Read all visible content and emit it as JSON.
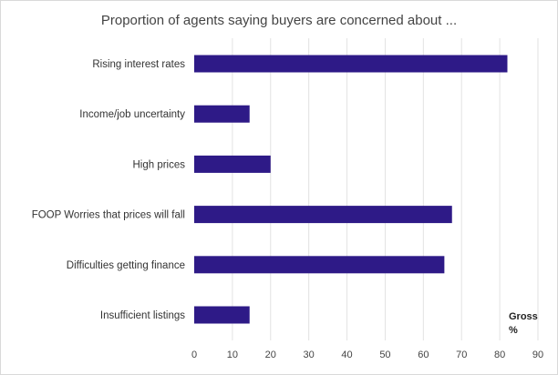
{
  "chart_data": {
    "type": "bar",
    "orientation": "horizontal",
    "title": "Proportion of agents saying buyers are concerned about ...",
    "categories": [
      "Rising interest rates",
      "Income/job uncertainty",
      "High prices",
      "FOOP Worries that prices will fall",
      "Difficulties getting finance",
      "Insufficient listings"
    ],
    "series": [
      {
        "values": [
          82,
          14.5,
          20,
          67.5,
          65.5,
          14.5
        ]
      }
    ],
    "xlim": [
      0,
      90
    ],
    "x_ticks": [
      0,
      10,
      20,
      30,
      40,
      50,
      60,
      70,
      80,
      90
    ],
    "x_unit_label": [
      "Gross",
      "%"
    ],
    "bar_color": "#2e1a87",
    "grid": true
  }
}
